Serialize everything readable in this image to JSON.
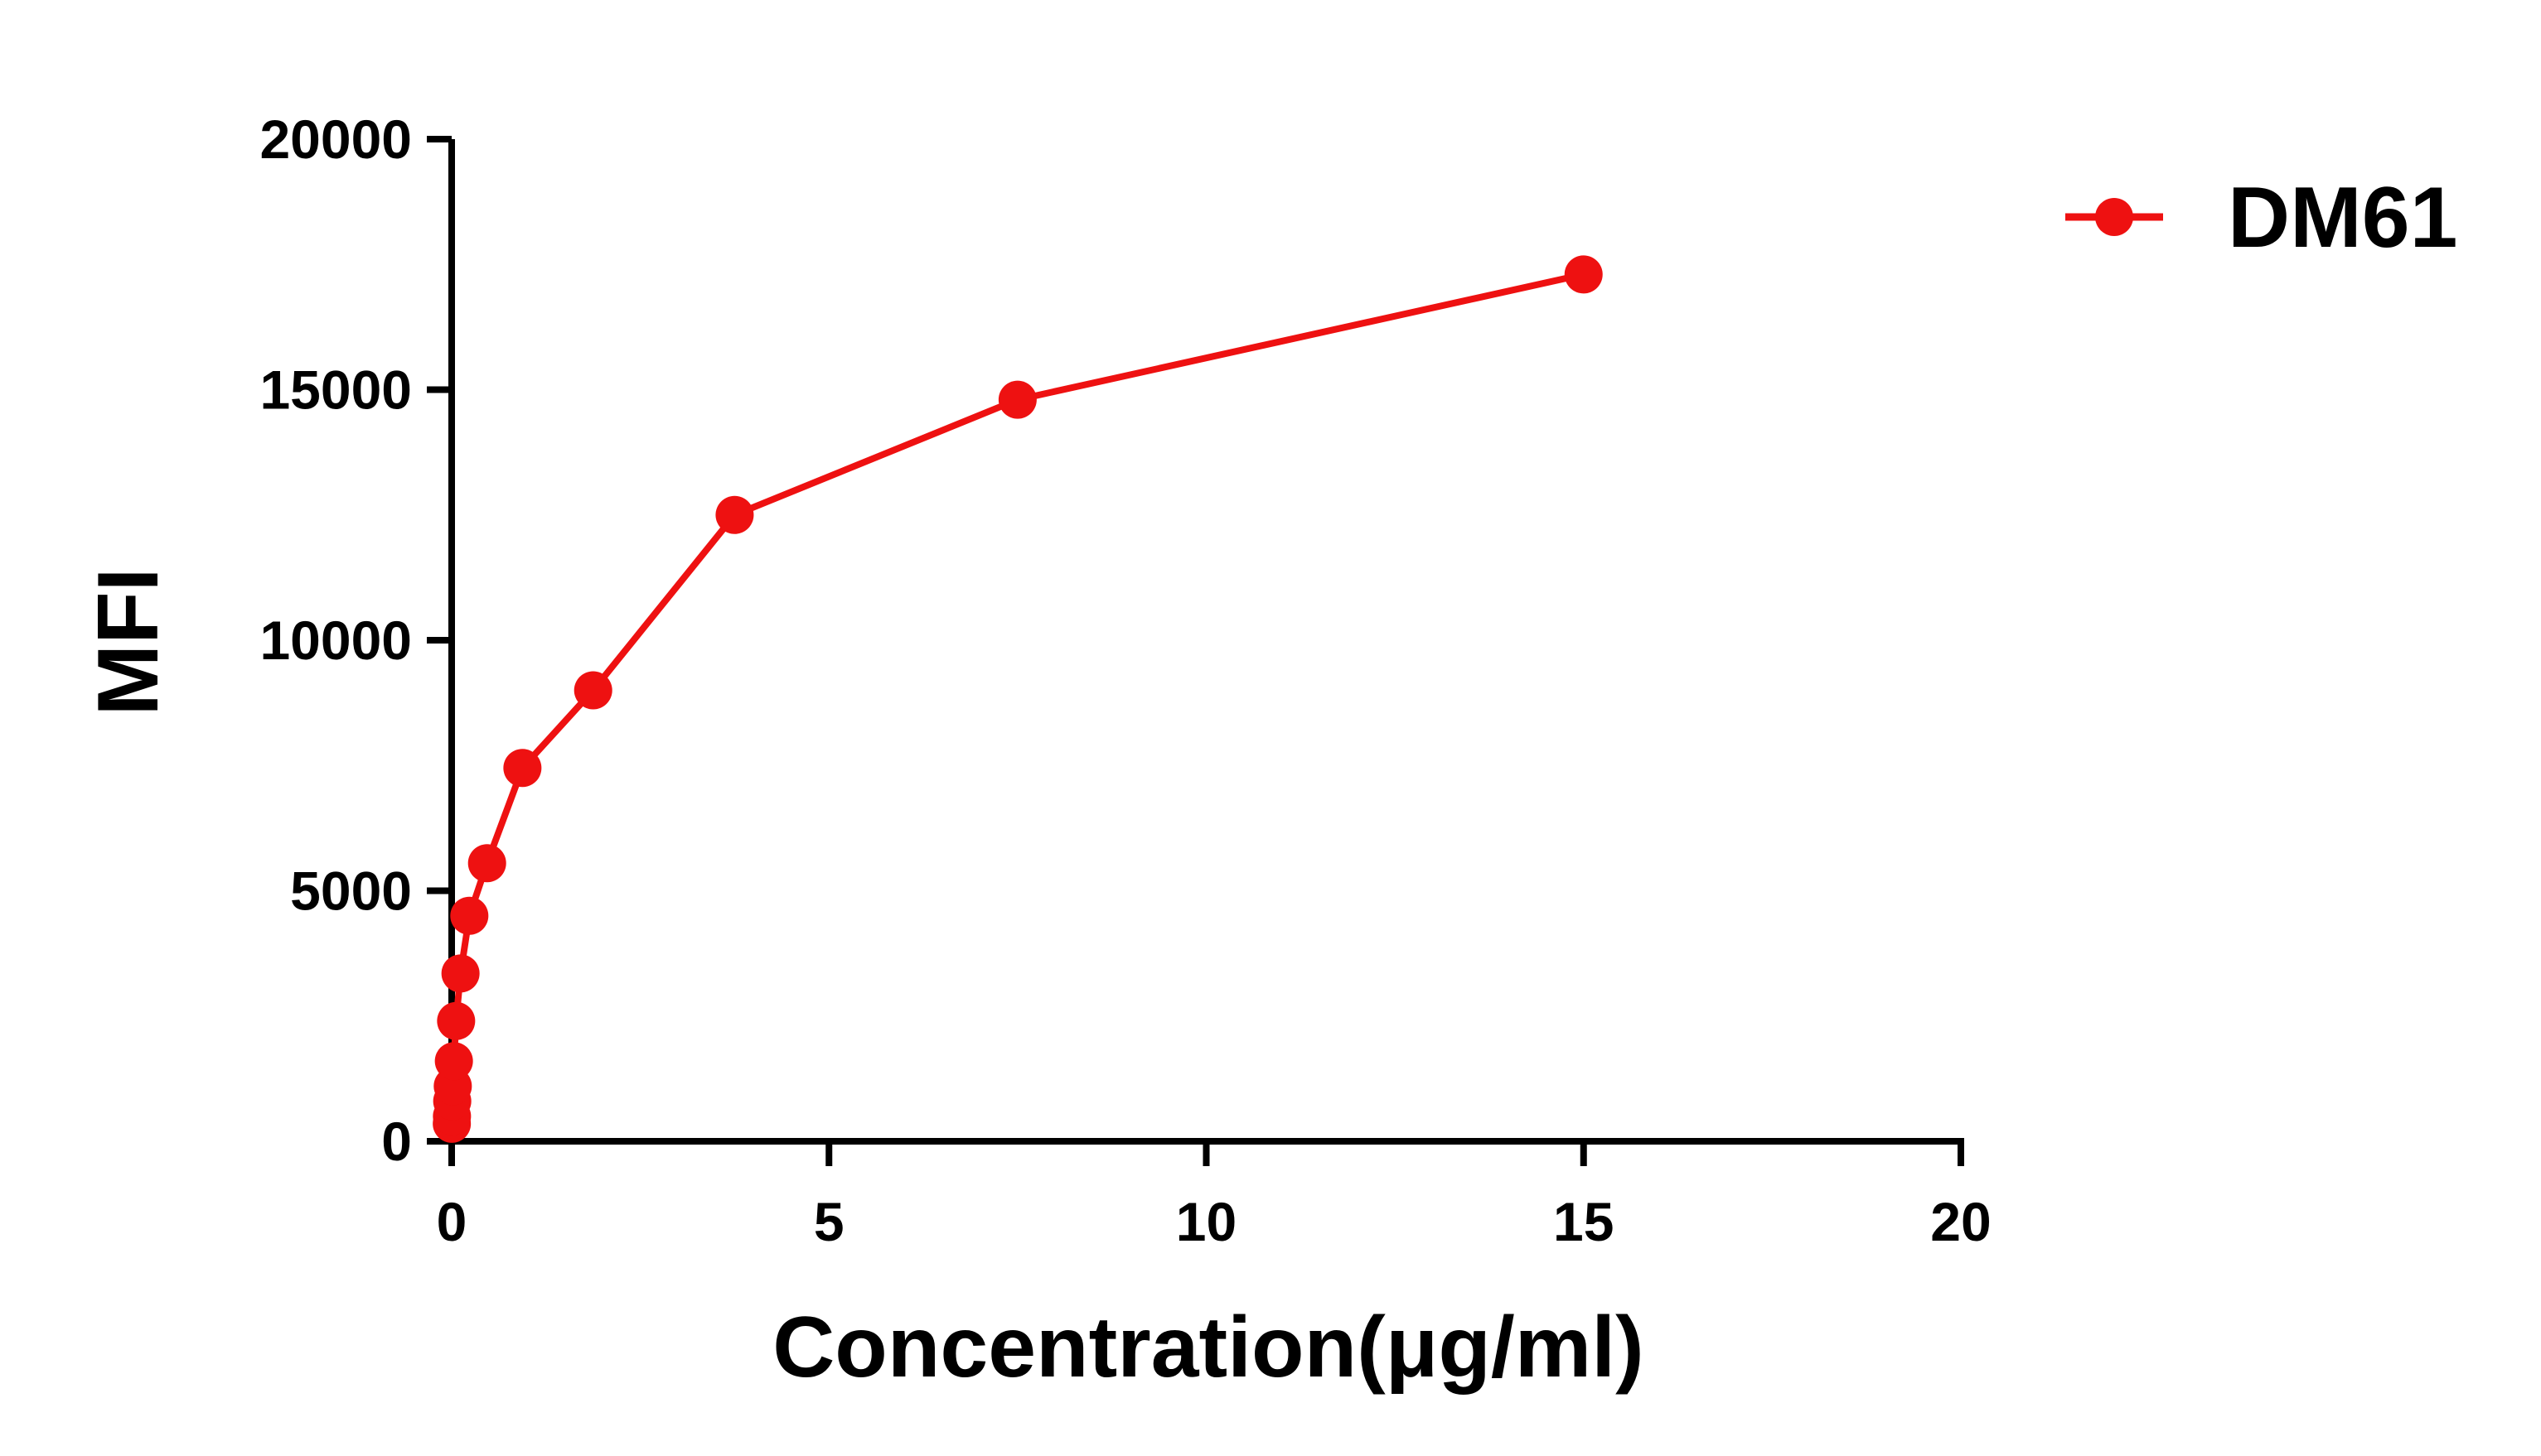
{
  "chart_data": {
    "type": "line",
    "title": "",
    "xlabel": "Concentration(μg/ml)",
    "ylabel": "MFI",
    "xlim": [
      0,
      20
    ],
    "ylim": [
      0,
      20000
    ],
    "x_ticks": [
      0,
      5,
      10,
      15,
      20
    ],
    "y_ticks": [
      0,
      5000,
      10000,
      15000,
      20000
    ],
    "x_tick_labels": [
      "0",
      "5",
      "10",
      "15",
      "20"
    ],
    "y_tick_labels": [
      "0",
      "5000",
      "10000",
      "15000",
      "20000"
    ],
    "grid": false,
    "legend_position": "top-right",
    "series": [
      {
        "name": "DM61",
        "color": "#ee1111",
        "marker": "circle",
        "points": [
          {
            "x": 15,
            "y": 17300
          },
          {
            "x": 7.5,
            "y": 14800
          },
          {
            "x": 3.75,
            "y": 12500
          },
          {
            "x": 1.875,
            "y": 9000
          },
          {
            "x": 0.9375,
            "y": 7450
          },
          {
            "x": 0.469,
            "y": 5550
          },
          {
            "x": 0.234,
            "y": 4500
          },
          {
            "x": 0.117,
            "y": 3350
          },
          {
            "x": 0.0586,
            "y": 2400
          },
          {
            "x": 0.0293,
            "y": 1600
          },
          {
            "x": 0.0146,
            "y": 1100
          },
          {
            "x": 0.0073,
            "y": 800
          },
          {
            "x": 0.0037,
            "y": 500
          },
          {
            "x": 0.0018,
            "y": 350
          }
        ]
      }
    ]
  }
}
